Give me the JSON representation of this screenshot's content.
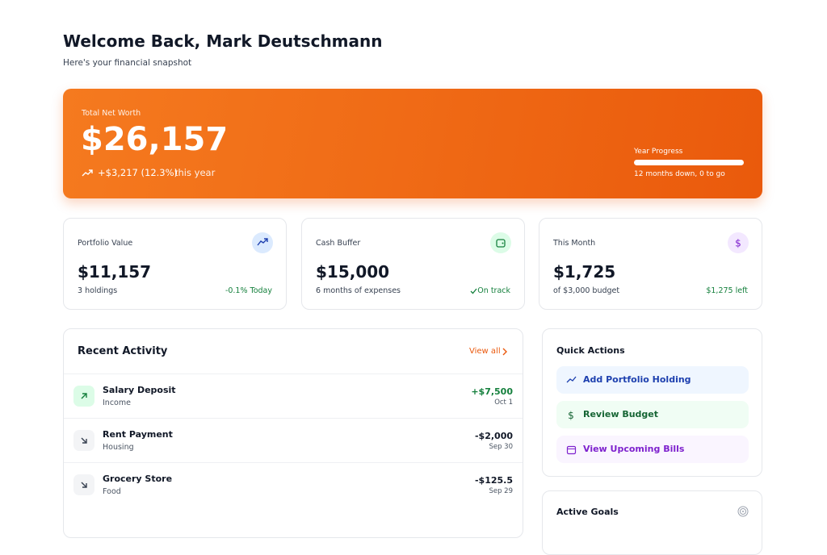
{
  "header": {
    "title": "Welcome Back, Mark Deutschmann",
    "subtitle": "Here's your financial snapshot"
  },
  "net_worth": {
    "label": "Total Net Worth",
    "value": "$26,157",
    "change": "+$3,217 (12.3%)",
    "change_period": "this year",
    "progress_label": "Year Progress",
    "progress_text": "12 months down, 0 to go"
  },
  "stats": [
    {
      "label": "Portfolio Value",
      "value": "$11,157",
      "sub": "3 holdings",
      "status": "-0.1% Today"
    },
    {
      "label": "Cash Buffer",
      "value": "$15,000",
      "sub": "6 months of expenses",
      "status": "On track"
    },
    {
      "label": "This Month",
      "value": "$1,725",
      "sub": "of $3,000 budget",
      "status": "$1,275 left"
    }
  ],
  "activity": {
    "title": "Recent Activity",
    "view_all": "View all",
    "items": [
      {
        "name": "Salary Deposit",
        "category": "Income",
        "amount": "+$7,500",
        "date": "Oct 1"
      },
      {
        "name": "Rent Payment",
        "category": "Housing",
        "amount": "-$2,000",
        "date": "Sep 30"
      },
      {
        "name": "Grocery Store",
        "category": "Food",
        "amount": "-$125.5",
        "date": "Sep 29"
      }
    ]
  },
  "quick_actions": {
    "title": "Quick Actions",
    "items": [
      "Add Portfolio Holding",
      "Review Budget",
      "View Upcoming Bills"
    ]
  },
  "goals": {
    "title": "Active Goals"
  }
}
